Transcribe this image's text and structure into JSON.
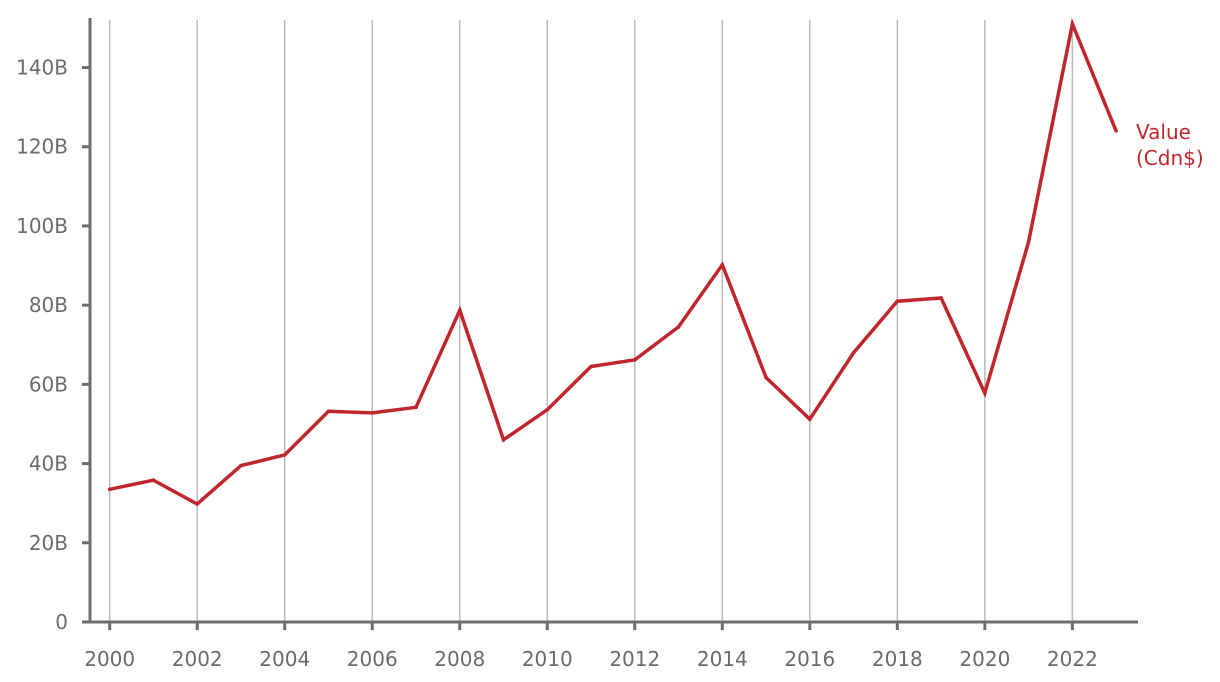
{
  "chart_data": {
    "type": "line",
    "series": [
      {
        "name": "Value (Cdn$)",
        "label_lines": [
          "Value",
          "(Cdn$)"
        ],
        "color": "#c0272d",
        "x": [
          2000,
          2001,
          2002,
          2003,
          2004,
          2005,
          2006,
          2007,
          2008,
          2009,
          2010,
          2011,
          2012,
          2013,
          2014,
          2015,
          2016,
          2017,
          2018,
          2019,
          2020,
          2021,
          2022,
          2023
        ],
        "values": [
          33.5,
          35.8,
          29.8,
          39.5,
          42.2,
          53.2,
          52.8,
          54.2,
          78.7,
          46.0,
          53.6,
          64.5,
          66.2,
          74.5,
          90.2,
          61.7,
          51.2,
          68.0,
          81.0,
          81.8,
          57.8,
          96.0,
          151.0,
          124.0
        ]
      }
    ],
    "x_ticks": [
      "2000",
      "2002",
      "2004",
      "2006",
      "2008",
      "2010",
      "2012",
      "2014",
      "2016",
      "2018",
      "2020",
      "2022"
    ],
    "x_tick_values": [
      2000,
      2002,
      2004,
      2006,
      2008,
      2010,
      2012,
      2014,
      2016,
      2018,
      2020,
      2022
    ],
    "y_ticks": [
      "0",
      "20B",
      "40B",
      "60B",
      "80B",
      "100B",
      "120B",
      "140B"
    ],
    "y_tick_values": [
      0,
      20,
      40,
      60,
      80,
      100,
      120,
      140
    ],
    "xlim": [
      1999.55,
      2023.5
    ],
    "ylim": [
      0,
      152
    ],
    "y_unit": "billions Cdn$",
    "grid": "vertical",
    "legend": "inline label at end of line",
    "title": "",
    "xlabel": "",
    "ylabel": ""
  }
}
